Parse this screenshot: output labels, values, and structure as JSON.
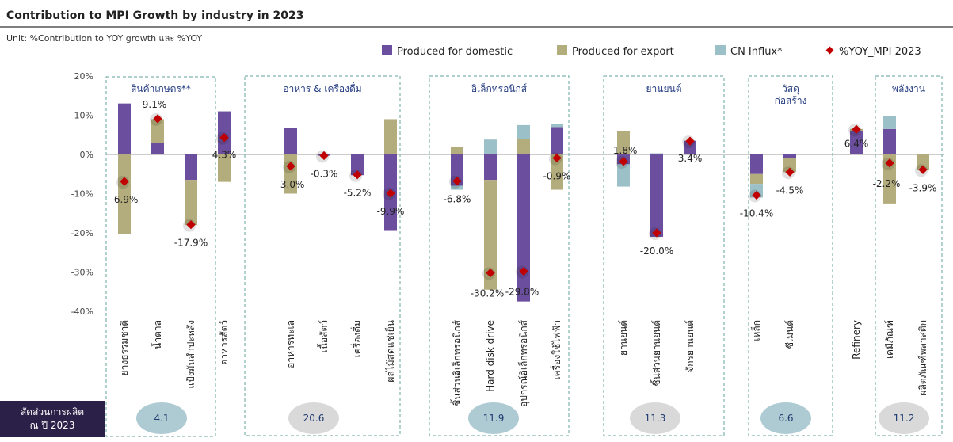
{
  "chart_data": {
    "type": "bar",
    "stacked": true,
    "title": "Contribution  to MPI Growth by industry in 2023",
    "subtitle": "Unit: %Contribution to YOY growth และ %YOY",
    "ylim": [
      -40,
      20
    ],
    "yticks": [
      "20%",
      "10%",
      "0%",
      "-10%",
      "-20%",
      "-30%",
      "-40%"
    ],
    "ytick_values": [
      20,
      10,
      0,
      -10,
      -20,
      -30,
      -40
    ],
    "legend_position": "top-right",
    "series": [
      {
        "name": "Produced for domestic",
        "color": "#6b4f9e"
      },
      {
        "name": "Produced for export",
        "color": "#b3ac7c"
      },
      {
        "name": "CN   Influx*",
        "color": "#9cc0c7"
      },
      {
        "name": "%YOY_MPI 2023",
        "color": "#c00000"
      }
    ],
    "groups": [
      {
        "name": "สินค้าเกษตร**",
        "share": "4.1",
        "share_color": "#aecbd3",
        "categories": [
          {
            "name": "ยางธรรมชาติ",
            "domestic": 13,
            "export": -20.3,
            "cn": 0,
            "yoy": -6.9,
            "label": "-6.9%"
          },
          {
            "name": "น้ำตาล",
            "domestic": 3,
            "export": 6,
            "cn": 0,
            "yoy": 9.1,
            "label": "9.1%"
          },
          {
            "name": "แป้งมันสำปะหลัง",
            "domestic": -6.5,
            "export": -11.5,
            "cn": 0,
            "yoy": -17.9,
            "label": "-17.9%"
          }
        ]
      },
      {
        "name": "",
        "share": "",
        "share_color": "",
        "categories": [
          {
            "name": "อาหารสัตว์",
            "domestic": 11,
            "export": -7,
            "cn": 0,
            "yoy": 4.3,
            "label": "4.3%"
          }
        ]
      },
      {
        "name": "อาหาร & เครื่องดื่ม",
        "share": "20.6",
        "share_color": "#d9d9d9",
        "categories": [
          {
            "name": "อาหารทะเล",
            "domestic": 6.8,
            "export": -10,
            "cn": 0,
            "yoy": -3.0,
            "label": "-3.0%"
          },
          {
            "name": "เนื้อสัตว์",
            "domestic": -0.3,
            "export": 0,
            "cn": 0,
            "yoy": -0.3,
            "label": "-0.3%"
          },
          {
            "name": "เครื่องดื่ม",
            "domestic": -5.3,
            "export": 0,
            "cn": 0,
            "yoy": -5.2,
            "label": "-5.2%"
          },
          {
            "name": "ผลไม้สดแช่เย็น",
            "domestic": -19.3,
            "export": 9,
            "cn": 0,
            "yoy": -9.9,
            "label": "-9.9%"
          }
        ]
      },
      {
        "name": "อิเล็กทรอนิกส์",
        "share": "11.9",
        "share_color": "#aecbd3",
        "categories": [
          {
            "name": "ชิ้นส่วนอิเล็กทรอนิกส์",
            "domestic": -8,
            "export": 2,
            "cn": -1,
            "yoy": -6.8,
            "label": "-6.8%"
          },
          {
            "name": "Hard disk drive",
            "domestic": -6.5,
            "export": -28,
            "cn": 3.8,
            "yoy": -30.2,
            "label": "-30.2%"
          },
          {
            "name": "อุปกรณ์อิเล็กทรอนิกส์",
            "domestic": -37.5,
            "export": 4,
            "cn": 3.5,
            "yoy": -29.8,
            "label": "-29.8%"
          },
          {
            "name": "เครื่องใช้ไฟฟ้า",
            "domestic": 7,
            "export": -9,
            "cn": 0.7,
            "yoy": -0.9,
            "label": "-0.9%"
          }
        ]
      },
      {
        "name": "ยานยนต์",
        "share": "11.3",
        "share_color": "#d9d9d9",
        "categories": [
          {
            "name": "ยานยนต์",
            "domestic": -2.5,
            "export": 6,
            "cn": -5.7,
            "yoy": -1.8,
            "label": "-1.8%"
          },
          {
            "name": "ชิ้นส่วนยานยนต์",
            "domestic": -21,
            "export": 0,
            "cn": 0.3,
            "yoy": -20.0,
            "label": "-20.0%"
          },
          {
            "name": "จักรยานยนต์",
            "domestic": 3.5,
            "export": 0,
            "cn": 0,
            "yoy": 3.4,
            "label": "3.4%"
          }
        ]
      },
      {
        "name": "วัสดุก่อสร้าง",
        "share": "6.6",
        "share_color": "#aecbd3",
        "categories": [
          {
            "name": "เหล็ก",
            "domestic": -5,
            "export": -2.5,
            "cn": -3.5,
            "yoy": -10.4,
            "label": "-10.4%"
          },
          {
            "name": "ซีเมนต์",
            "domestic": -1,
            "export": -3.5,
            "cn": 0,
            "yoy": -4.5,
            "label": "-4.5%"
          }
        ]
      },
      {
        "name": "พลังงาน",
        "share": "11.2",
        "share_color": "#d9d9d9",
        "categories": [
          {
            "name": "Refinery",
            "domestic": 6,
            "export": 0.5,
            "cn": 0,
            "yoy": 6.4,
            "label": "6.4%"
          },
          {
            "name": "เคมีภัณฑ์",
            "domestic": 6.5,
            "export": -12.5,
            "cn": 3.3,
            "yoy": -2.2,
            "label": "-2.2%"
          },
          {
            "name": "ผลิตภัณฑ์พลาสติก",
            "domestic": 0,
            "export": -4,
            "cn": 0,
            "yoy": -3.9,
            "label": "-3.9%"
          }
        ]
      }
    ],
    "share_label": [
      "สัดส่วนการผลิต",
      "ณ ปี 2023"
    ],
    "share_label_bg": "#2b2148"
  }
}
